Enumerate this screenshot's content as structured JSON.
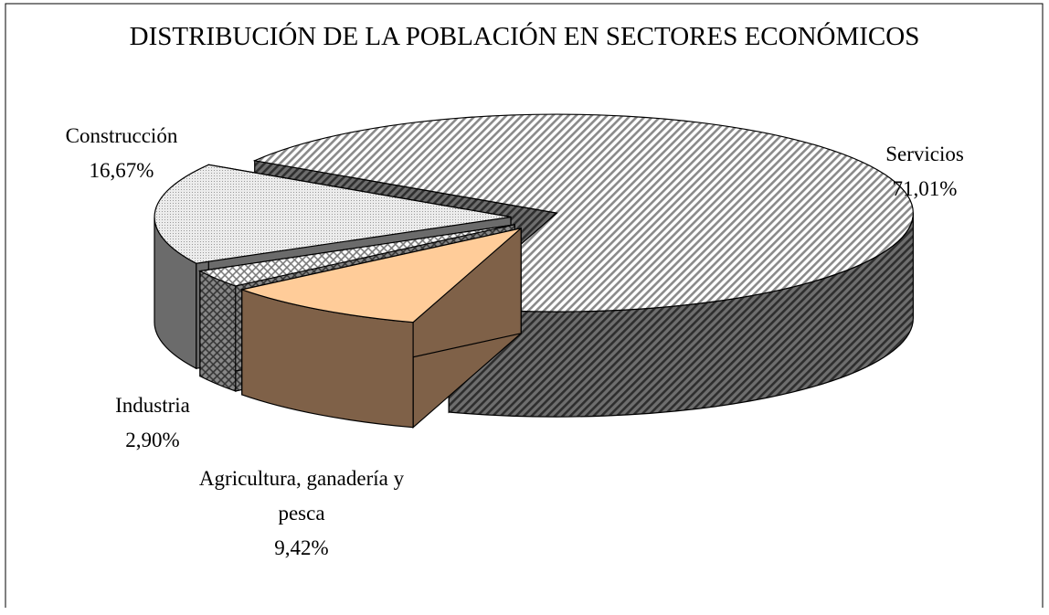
{
  "chart_data": {
    "type": "pie3d",
    "title": "DISTRIBUCIÓN DE LA POBLACIÓN EN SECTORES ECONÓMICOS",
    "categories": [
      "Servicios",
      "Agricultura, ganadería y pesca",
      "Industria",
      "Construcción"
    ],
    "values": [
      71.01,
      9.42,
      2.9,
      16.67
    ],
    "value_labels": [
      "71,01%",
      "9,42%",
      "2,90%",
      "16,67%"
    ],
    "colors": [
      "#c8c8c8",
      "#ffcc99",
      "#e8e8e8",
      "#e6e6e6"
    ]
  }
}
